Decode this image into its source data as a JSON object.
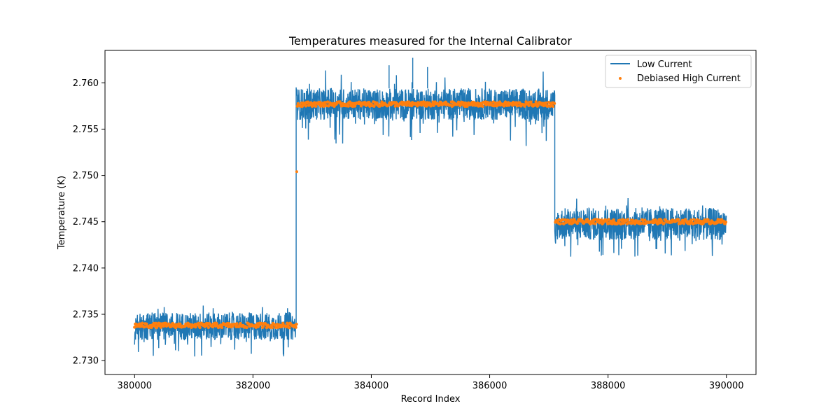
{
  "chart_data": {
    "type": "line",
    "title": "Temperatures measured for the Internal Calibrator",
    "xlabel": "Record Index",
    "ylabel": "Temperature (K)",
    "xlim": [
      379500,
      390500
    ],
    "ylim": [
      2.7285,
      2.7635
    ],
    "xticks": [
      380000,
      382000,
      384000,
      386000,
      388000,
      390000
    ],
    "xtick_labels": [
      "380000",
      "382000",
      "384000",
      "386000",
      "388000",
      "390000"
    ],
    "yticks": [
      2.73,
      2.735,
      2.74,
      2.745,
      2.75,
      2.755,
      2.76
    ],
    "ytick_labels": [
      "2.730",
      "2.735",
      "2.740",
      "2.745",
      "2.750",
      "2.755",
      "2.760"
    ],
    "grid": false,
    "legend": {
      "position": "top-right"
    },
    "series": [
      {
        "name": "Low Current",
        "kind": "line",
        "color": "#1f77b4",
        "segments": [
          {
            "x_start": 380000,
            "x_end": 382720,
            "mean": 2.7338,
            "band_low": 2.7322,
            "band_high": 2.7352,
            "spike_low": 2.7301,
            "spike_high": 2.737
          },
          {
            "x_start": 382740,
            "x_end": 387100,
            "mean": 2.7577,
            "band_low": 2.756,
            "band_high": 2.7594,
            "spike_low": 2.753,
            "spike_high": 2.7627
          },
          {
            "x_start": 387110,
            "x_end": 390000,
            "mean": 2.745,
            "band_low": 2.743,
            "band_high": 2.7465,
            "spike_low": 2.7412,
            "spike_high": 2.7483
          }
        ],
        "transitions": [
          {
            "x": 382730,
            "from": 2.7338,
            "to": 2.7595
          },
          {
            "x": 387100,
            "from": 2.7577,
            "to": 2.744
          }
        ]
      },
      {
        "name": "Debiased High Current",
        "kind": "scatter",
        "color": "#ff7f0e",
        "levels": [
          {
            "x_start": 380000,
            "x_end": 382740,
            "value": 2.7338
          },
          {
            "x_start": 382750,
            "x_end": 387100,
            "value": 2.7577
          },
          {
            "x_start": 387110,
            "x_end": 390000,
            "value": 2.745
          }
        ],
        "outliers": [
          {
            "x": 382740,
            "y": 2.7504
          }
        ]
      }
    ]
  }
}
